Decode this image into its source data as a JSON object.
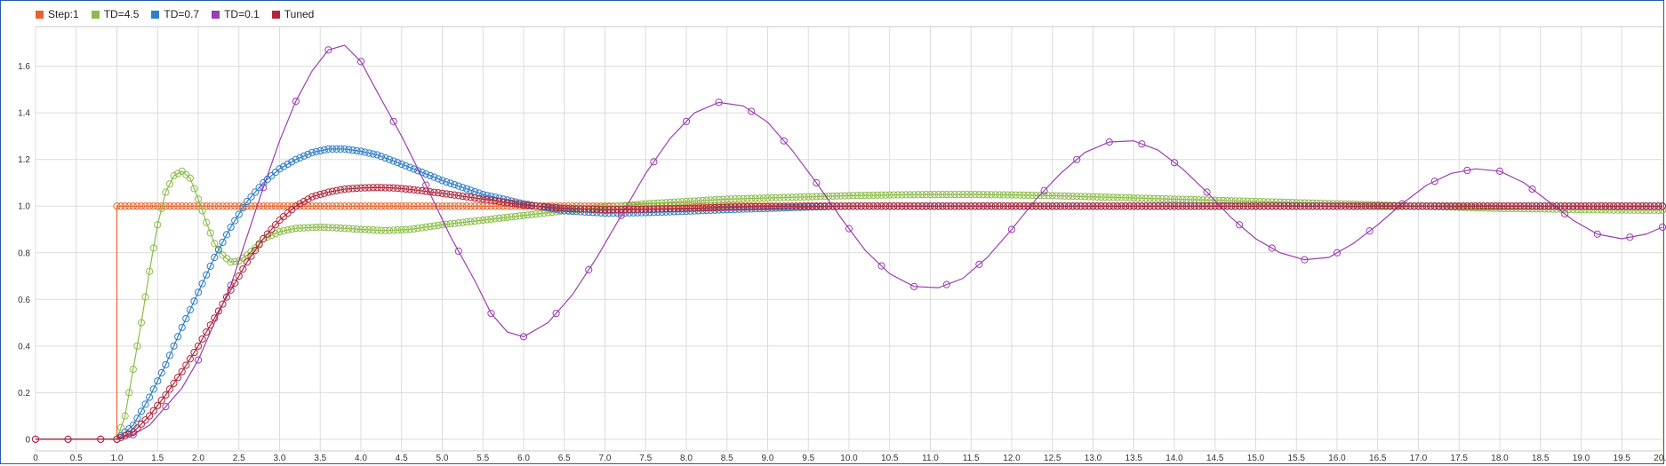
{
  "chart_data": {
    "type": "line",
    "title": "",
    "xlabel": "",
    "ylabel": "",
    "xlim": [
      0,
      20
    ],
    "ylim": [
      -0.05,
      1.77
    ],
    "grid": true,
    "legend_position": "top-left",
    "x_ticks": [
      0,
      0.5,
      1,
      1.5,
      2,
      2.5,
      3,
      3.5,
      4,
      4.5,
      5,
      5.5,
      6,
      6.5,
      7,
      7.5,
      8,
      8.5,
      9,
      9.5,
      10,
      10.5,
      11,
      11.5,
      12,
      12.5,
      13,
      13.5,
      14,
      14.5,
      15,
      15.5,
      16,
      16.5,
      17,
      17.5,
      18,
      18.5,
      19,
      19.5,
      20
    ],
    "x_tick_labels": [
      "0",
      "0.5",
      "1.0",
      "1.5",
      "2.0",
      "2.5",
      "3.0",
      "3.5",
      "4.0",
      "4.5",
      "5.0",
      "5.5",
      "6.0",
      "6.5",
      "7.0",
      "7.5",
      "8.0",
      "8.5",
      "9.0",
      "9.5",
      "10.0",
      "10.5",
      "11.0",
      "11.5",
      "12.0",
      "12.5",
      "13.0",
      "13.5",
      "14.0",
      "14.5",
      "15.0",
      "15.5",
      "16.0",
      "16.5",
      "17.0",
      "17.5",
      "18.0",
      "18.5",
      "19.0",
      "19.5",
      "20.0"
    ],
    "y_ticks": [
      0,
      0.2,
      0.4,
      0.6,
      0.8,
      1.0,
      1.2,
      1.4,
      1.6
    ],
    "y_tick_labels": [
      "0",
      "0.2",
      "0.4",
      "0.6",
      "0.8",
      "1.0",
      "1.2",
      "1.4",
      "1.6"
    ],
    "series": [
      {
        "name": "Step:1",
        "color": "#e8632b",
        "x": [
          0,
          1,
          1,
          20
        ],
        "y": [
          0,
          0,
          1,
          1
        ],
        "step": 1,
        "markers": true,
        "marker_interval": 0.05,
        "marker_start": 1.0
      },
      {
        "name": "TD=4.5",
        "color": "#8cbd4a",
        "x": [
          0,
          1.0,
          1.1,
          1.2,
          1.3,
          1.4,
          1.5,
          1.6,
          1.7,
          1.8,
          1.9,
          2.0,
          2.1,
          2.2,
          2.3,
          2.4,
          2.5,
          2.6,
          2.7,
          2.8,
          3.0,
          3.2,
          3.5,
          3.8,
          4.0,
          4.3,
          4.6,
          5.0,
          5.5,
          6.0,
          6.5,
          7.0,
          7.5,
          8.0,
          8.5,
          9.0,
          9.5,
          10.0,
          10.5,
          11.0,
          11.5,
          12.0,
          12.5,
          13.0,
          13.5,
          14.0,
          14.5,
          15.0,
          15.5,
          16.0,
          16.5,
          17.0,
          17.5,
          18.0,
          18.5,
          19.0,
          19.5,
          20.0
        ],
        "y": [
          0,
          0,
          0.1,
          0.3,
          0.5,
          0.72,
          0.92,
          1.06,
          1.13,
          1.15,
          1.12,
          1.03,
          0.93,
          0.84,
          0.79,
          0.76,
          0.765,
          0.79,
          0.82,
          0.86,
          0.89,
          0.905,
          0.91,
          0.905,
          0.9,
          0.895,
          0.9,
          0.92,
          0.94,
          0.96,
          0.98,
          0.995,
          1.01,
          1.02,
          1.03,
          1.035,
          1.04,
          1.045,
          1.048,
          1.05,
          1.05,
          1.048,
          1.045,
          1.04,
          1.035,
          1.03,
          1.025,
          1.02,
          1.015,
          1.01,
          1.005,
          1.0,
          0.995,
          0.99,
          0.988,
          0.985,
          0.983,
          0.982
        ],
        "markers": true,
        "marker_interval": 0.05,
        "marker_start": 1.0
      },
      {
        "name": "TD=0.7",
        "color": "#2f7fc8",
        "x": [
          0,
          1.0,
          1.2,
          1.4,
          1.6,
          1.8,
          2.0,
          2.2,
          2.4,
          2.6,
          2.8,
          3.0,
          3.2,
          3.4,
          3.6,
          3.8,
          4.0,
          4.2,
          4.5,
          5.0,
          5.5,
          6.0,
          6.5,
          7.0,
          7.5,
          8.0,
          8.5,
          9.0,
          9.5,
          10.0,
          11.0,
          12.0,
          13.0,
          14.0,
          15.0,
          16.0,
          17.0,
          18.0,
          19.0,
          20.0
        ],
        "y": [
          0,
          0,
          0.06,
          0.18,
          0.32,
          0.48,
          0.63,
          0.78,
          0.91,
          1.02,
          1.1,
          1.16,
          1.2,
          1.23,
          1.245,
          1.245,
          1.235,
          1.22,
          1.18,
          1.11,
          1.05,
          1.01,
          0.98,
          0.97,
          0.972,
          0.978,
          0.985,
          0.99,
          0.996,
          1.0,
          1.0,
          1.0,
          1.0,
          1.0,
          1.0,
          1.0,
          1.0,
          1.0,
          1.0,
          1.0
        ],
        "markers": true,
        "marker_interval": 0.05,
        "marker_start": 1.0
      },
      {
        "name": "TD=0.1",
        "color": "#9b3fb0",
        "x": [
          0,
          0.4,
          0.8,
          1.0,
          1.2,
          1.4,
          1.6,
          1.8,
          2.0,
          2.2,
          2.4,
          2.6,
          2.8,
          3.0,
          3.2,
          3.4,
          3.6,
          3.8,
          4.0,
          4.2,
          4.5,
          4.8,
          5.1,
          5.4,
          5.6,
          5.8,
          6.0,
          6.3,
          6.6,
          6.9,
          7.2,
          7.5,
          7.8,
          8.1,
          8.4,
          8.7,
          9.0,
          9.3,
          9.6,
          9.9,
          10.2,
          10.5,
          10.8,
          11.1,
          11.4,
          11.7,
          12.0,
          12.3,
          12.6,
          12.9,
          13.2,
          13.5,
          13.8,
          14.1,
          14.4,
          14.7,
          15.0,
          15.3,
          15.6,
          15.9,
          16.2,
          16.5,
          16.8,
          17.1,
          17.4,
          17.7,
          18.0,
          18.3,
          18.6,
          18.9,
          19.2,
          19.5,
          19.8,
          20.0
        ],
        "y": [
          0,
          0,
          0,
          0,
          0.02,
          0.06,
          0.14,
          0.22,
          0.34,
          0.5,
          0.66,
          0.87,
          1.08,
          1.28,
          1.45,
          1.58,
          1.67,
          1.69,
          1.62,
          1.49,
          1.3,
          1.09,
          0.87,
          0.68,
          0.54,
          0.46,
          0.44,
          0.5,
          0.62,
          0.78,
          0.96,
          1.14,
          1.29,
          1.4,
          1.445,
          1.43,
          1.36,
          1.24,
          1.1,
          0.95,
          0.81,
          0.71,
          0.655,
          0.65,
          0.69,
          0.78,
          0.9,
          1.03,
          1.14,
          1.23,
          1.275,
          1.28,
          1.24,
          1.16,
          1.06,
          0.95,
          0.86,
          0.8,
          0.77,
          0.78,
          0.84,
          0.92,
          1.01,
          1.09,
          1.14,
          1.16,
          1.15,
          1.1,
          1.02,
          0.94,
          0.88,
          0.86,
          0.88,
          0.91
        ],
        "markers": true,
        "marker_interval": 0.4,
        "marker_start": 0
      },
      {
        "name": "Tuned",
        "color": "#b0273c",
        "x": [
          0,
          1.0,
          1.2,
          1.4,
          1.6,
          1.8,
          2.0,
          2.2,
          2.4,
          2.6,
          2.8,
          3.0,
          3.2,
          3.4,
          3.6,
          3.8,
          4.0,
          4.2,
          4.4,
          4.6,
          5.0,
          5.5,
          6.0,
          6.5,
          7.0,
          7.5,
          8.0,
          8.5,
          9.0,
          9.5,
          10.0,
          11.0,
          12.0,
          13.0,
          14.0,
          15.0,
          16.0,
          17.0,
          18.0,
          19.0,
          20.0
        ],
        "y": [
          0,
          0,
          0.03,
          0.1,
          0.19,
          0.29,
          0.4,
          0.52,
          0.64,
          0.76,
          0.86,
          0.94,
          1.0,
          1.04,
          1.06,
          1.073,
          1.078,
          1.08,
          1.078,
          1.072,
          1.055,
          1.03,
          1.005,
          0.99,
          0.985,
          0.987,
          0.99,
          0.995,
          0.998,
          1.0,
          1.0,
          1.0,
          1.0,
          1.0,
          1.0,
          1.0,
          1.0,
          1.0,
          1.0,
          1.0,
          1.0
        ],
        "markers": true,
        "marker_interval": 0.05,
        "marker_start": 1.0
      }
    ]
  },
  "legend": {
    "items": [
      {
        "label": "Step:1",
        "color": "#e8632b"
      },
      {
        "label": "TD=4.5",
        "color": "#8cbd4a"
      },
      {
        "label": "TD=0.7",
        "color": "#2f7fc8"
      },
      {
        "label": "TD=0.1",
        "color": "#9b3fb0"
      },
      {
        "label": "Tuned",
        "color": "#b0273c"
      }
    ]
  }
}
